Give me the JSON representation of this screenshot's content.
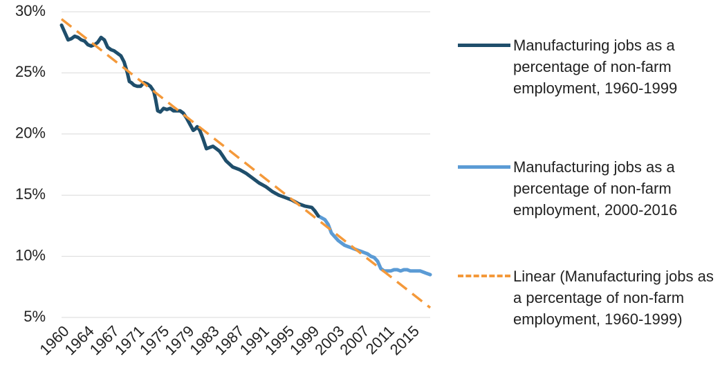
{
  "chart_data": {
    "type": "line",
    "title": "",
    "xlabel": "",
    "ylabel": "",
    "xlim": [
      1960,
      2016
    ],
    "ylim": [
      5,
      30
    ],
    "y_ticks": [
      "5%",
      "10%",
      "15%",
      "20%",
      "25%",
      "30%"
    ],
    "y_tick_values": [
      5,
      10,
      15,
      20,
      25,
      30
    ],
    "x_ticks": [
      "1960",
      "1964",
      "1967",
      "1971",
      "1975",
      "1979",
      "1983",
      "1987",
      "1991",
      "1995",
      "1999",
      "2003",
      "2007",
      "2011",
      "2015"
    ],
    "x_tick_values": [
      1960,
      1963.8,
      1967.6,
      1971.4,
      1975.2,
      1979,
      1982.8,
      1986.6,
      1990.4,
      1994.2,
      1998,
      2001.8,
      2005.6,
      2009.4,
      2013.2
    ],
    "grid": "horizontal",
    "legend_position": "right",
    "series": [
      {
        "name": "Manufacturing jobs as a percentage of non-farm employment, 1960-1999",
        "color": "#1f4e6b",
        "style": "solid",
        "x": [
          1960,
          1960.5,
          1961,
          1961.5,
          1962,
          1962.5,
          1963,
          1963.5,
          1964,
          1964.5,
          1965,
          1965.5,
          1966,
          1966.5,
          1967,
          1967.5,
          1968,
          1968.5,
          1969,
          1969.5,
          1970,
          1970.3,
          1970.6,
          1971,
          1971.5,
          1972,
          1972.5,
          1973,
          1973.5,
          1974,
          1974.3,
          1974.6,
          1975,
          1975.5,
          1976,
          1976.5,
          1977,
          1977.5,
          1978,
          1978.5,
          1979,
          1979.5,
          1980,
          1980.3,
          1980.6,
          1981,
          1981.5,
          1982,
          1982.5,
          1983,
          1983.5,
          1984,
          1984.5,
          1985,
          1986,
          1987,
          1988,
          1989,
          1990,
          1991,
          1992,
          1993,
          1994,
          1995,
          1996,
          1997,
          1998,
          1998.5,
          1999
        ],
        "y": [
          28.9,
          28.3,
          27.7,
          27.8,
          28.0,
          27.9,
          27.7,
          27.6,
          27.3,
          27.2,
          27.3,
          27.5,
          27.9,
          27.7,
          27.1,
          26.9,
          26.8,
          26.6,
          26.4,
          25.9,
          25.0,
          24.3,
          24.2,
          24.0,
          23.9,
          23.9,
          24.2,
          24.1,
          23.9,
          23.5,
          22.8,
          21.9,
          21.8,
          22.1,
          22.0,
          22.1,
          21.9,
          21.9,
          21.9,
          21.7,
          21.3,
          20.8,
          20.3,
          20.4,
          20.6,
          20.3,
          19.6,
          18.8,
          18.9,
          19.0,
          18.8,
          18.6,
          18.2,
          17.8,
          17.3,
          17.1,
          16.8,
          16.4,
          16.0,
          15.7,
          15.3,
          15.0,
          14.8,
          14.6,
          14.3,
          14.1,
          14.0,
          13.7,
          13.3
        ]
      },
      {
        "name": "Manufacturing jobs as a percentage of non-farm employment, 2000-2016",
        "color": "#5b9bd5",
        "style": "solid",
        "x": [
          1999,
          2000,
          2000.5,
          2001,
          2001.5,
          2002,
          2002.5,
          2003,
          2003.5,
          2004,
          2004.5,
          2005,
          2005.5,
          2006,
          2006.5,
          2007,
          2007.5,
          2008,
          2008.5,
          2009,
          2009.5,
          2010,
          2010.5,
          2011,
          2011.5,
          2012,
          2012.5,
          2013,
          2013.5,
          2014,
          2014.5,
          2015,
          2015.5,
          2016
        ],
        "y": [
          13.3,
          13.0,
          12.6,
          11.9,
          11.6,
          11.3,
          11.1,
          10.9,
          10.8,
          10.7,
          10.6,
          10.5,
          10.4,
          10.3,
          10.2,
          10.0,
          9.9,
          9.6,
          9.0,
          8.8,
          8.8,
          8.8,
          8.9,
          8.9,
          8.8,
          8.9,
          8.9,
          8.8,
          8.8,
          8.8,
          8.8,
          8.7,
          8.6,
          8.5
        ]
      },
      {
        "name": "Linear (Manufacturing jobs as a percentage of non-farm employment, 1960-1999)",
        "color": "#f4993a",
        "style": "dashed",
        "x": [
          1960,
          2016
        ],
        "y": [
          29.4,
          5.8
        ]
      }
    ]
  }
}
